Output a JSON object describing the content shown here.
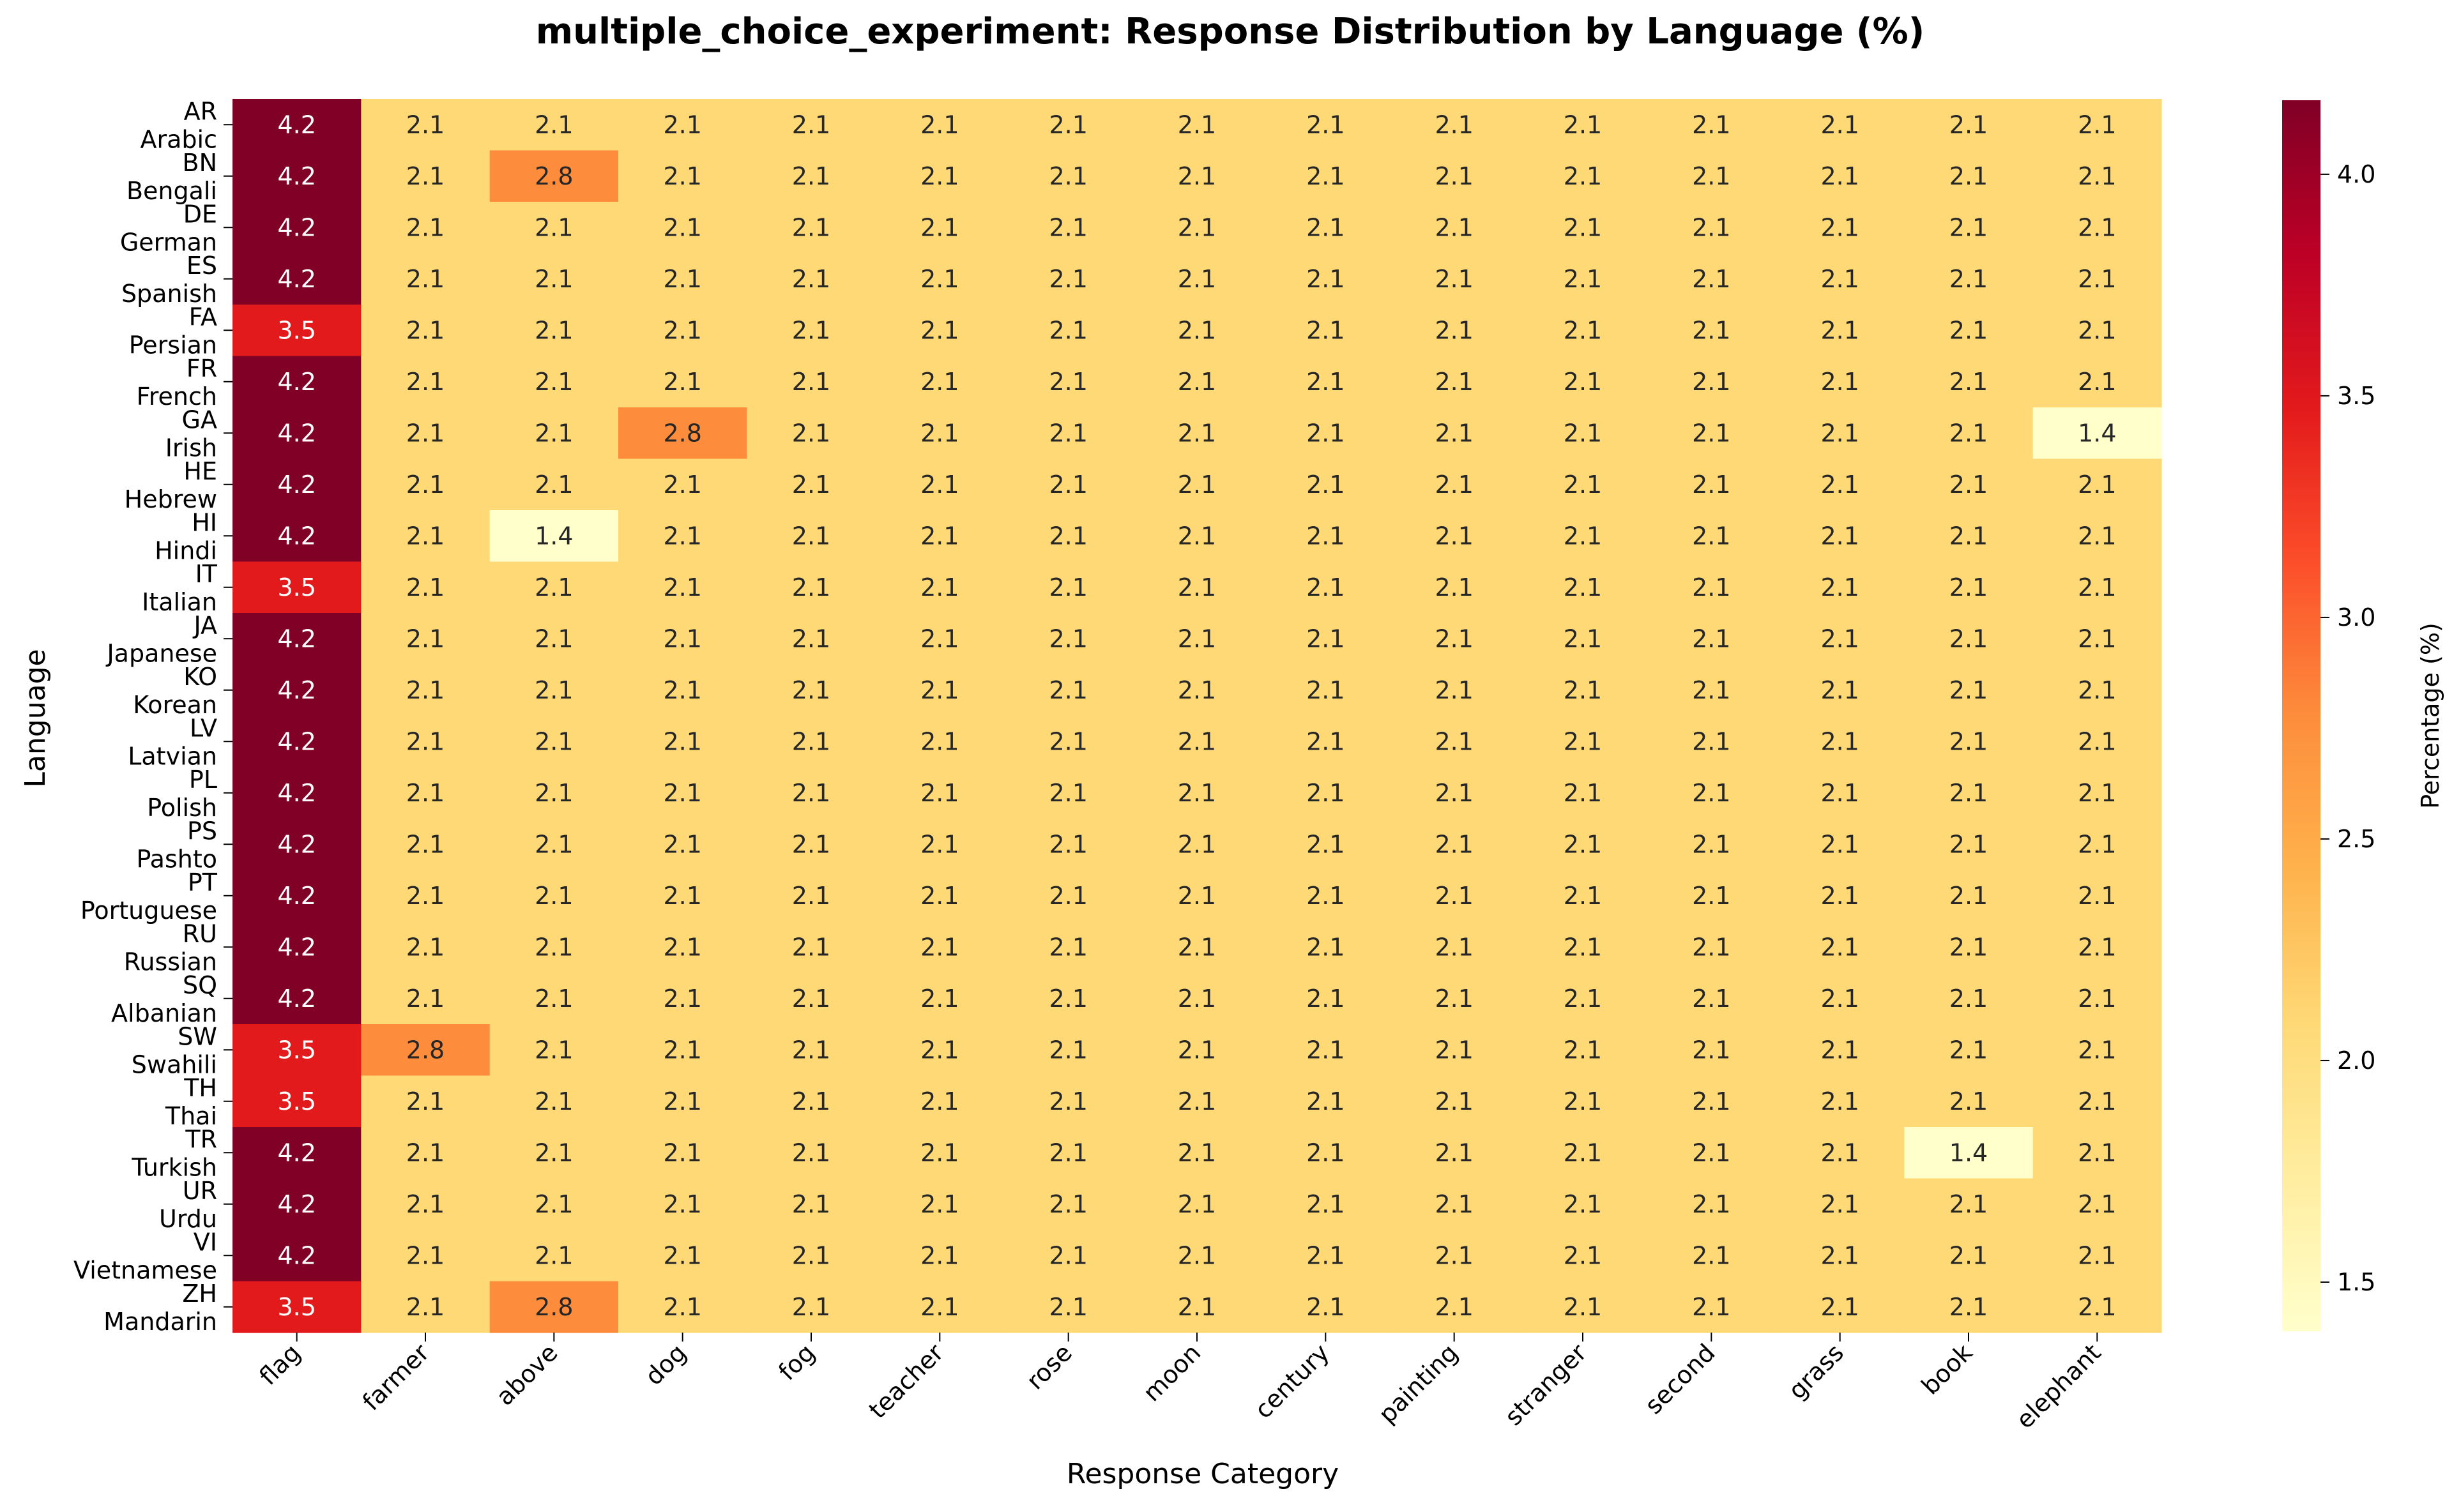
{
  "chart_data": {
    "type": "heatmap",
    "title": "multiple_choice_experiment: Response Distribution by Language (%)",
    "xlabel": "Response Category",
    "ylabel": "Language",
    "colorbar_label": "Percentage (%)",
    "colormap": "YlOrRd",
    "value_range": [
      1.389,
      4.167
    ],
    "colorbar_ticks": [
      "1.5",
      "2.0",
      "2.5",
      "3.0",
      "3.5",
      "4.0"
    ],
    "categories": [
      "flag",
      "farmer",
      "above",
      "dog",
      "fog",
      "teacher",
      "rose",
      "moon",
      "century",
      "painting",
      "stranger",
      "second",
      "grass",
      "book",
      "elephant"
    ],
    "rows": [
      {
        "code": "AR",
        "name": "Arabic"
      },
      {
        "code": "BN",
        "name": "Bengali"
      },
      {
        "code": "DE",
        "name": "German"
      },
      {
        "code": "ES",
        "name": "Spanish"
      },
      {
        "code": "FA",
        "name": "Persian"
      },
      {
        "code": "FR",
        "name": "French"
      },
      {
        "code": "GA",
        "name": "Irish"
      },
      {
        "code": "HE",
        "name": "Hebrew"
      },
      {
        "code": "HI",
        "name": "Hindi"
      },
      {
        "code": "IT",
        "name": "Italian"
      },
      {
        "code": "JA",
        "name": "Japanese"
      },
      {
        "code": "KO",
        "name": "Korean"
      },
      {
        "code": "LV",
        "name": "Latvian"
      },
      {
        "code": "PL",
        "name": "Polish"
      },
      {
        "code": "PS",
        "name": "Pashto"
      },
      {
        "code": "PT",
        "name": "Portuguese"
      },
      {
        "code": "RU",
        "name": "Russian"
      },
      {
        "code": "SQ",
        "name": "Albanian"
      },
      {
        "code": "SW",
        "name": "Swahili"
      },
      {
        "code": "TH",
        "name": "Thai"
      },
      {
        "code": "TR",
        "name": "Turkish"
      },
      {
        "code": "UR",
        "name": "Urdu"
      },
      {
        "code": "VI",
        "name": "Vietnamese"
      },
      {
        "code": "ZH",
        "name": "Mandarin"
      }
    ],
    "values": [
      [
        4.2,
        2.1,
        2.1,
        2.1,
        2.1,
        2.1,
        2.1,
        2.1,
        2.1,
        2.1,
        2.1,
        2.1,
        2.1,
        2.1,
        2.1
      ],
      [
        4.2,
        2.1,
        2.8,
        2.1,
        2.1,
        2.1,
        2.1,
        2.1,
        2.1,
        2.1,
        2.1,
        2.1,
        2.1,
        2.1,
        2.1
      ],
      [
        4.2,
        2.1,
        2.1,
        2.1,
        2.1,
        2.1,
        2.1,
        2.1,
        2.1,
        2.1,
        2.1,
        2.1,
        2.1,
        2.1,
        2.1
      ],
      [
        4.2,
        2.1,
        2.1,
        2.1,
        2.1,
        2.1,
        2.1,
        2.1,
        2.1,
        2.1,
        2.1,
        2.1,
        2.1,
        2.1,
        2.1
      ],
      [
        3.5,
        2.1,
        2.1,
        2.1,
        2.1,
        2.1,
        2.1,
        2.1,
        2.1,
        2.1,
        2.1,
        2.1,
        2.1,
        2.1,
        2.1
      ],
      [
        4.2,
        2.1,
        2.1,
        2.1,
        2.1,
        2.1,
        2.1,
        2.1,
        2.1,
        2.1,
        2.1,
        2.1,
        2.1,
        2.1,
        2.1
      ],
      [
        4.2,
        2.1,
        2.1,
        2.8,
        2.1,
        2.1,
        2.1,
        2.1,
        2.1,
        2.1,
        2.1,
        2.1,
        2.1,
        2.1,
        1.4
      ],
      [
        4.2,
        2.1,
        2.1,
        2.1,
        2.1,
        2.1,
        2.1,
        2.1,
        2.1,
        2.1,
        2.1,
        2.1,
        2.1,
        2.1,
        2.1
      ],
      [
        4.2,
        2.1,
        1.4,
        2.1,
        2.1,
        2.1,
        2.1,
        2.1,
        2.1,
        2.1,
        2.1,
        2.1,
        2.1,
        2.1,
        2.1
      ],
      [
        3.5,
        2.1,
        2.1,
        2.1,
        2.1,
        2.1,
        2.1,
        2.1,
        2.1,
        2.1,
        2.1,
        2.1,
        2.1,
        2.1,
        2.1
      ],
      [
        4.2,
        2.1,
        2.1,
        2.1,
        2.1,
        2.1,
        2.1,
        2.1,
        2.1,
        2.1,
        2.1,
        2.1,
        2.1,
        2.1,
        2.1
      ],
      [
        4.2,
        2.1,
        2.1,
        2.1,
        2.1,
        2.1,
        2.1,
        2.1,
        2.1,
        2.1,
        2.1,
        2.1,
        2.1,
        2.1,
        2.1
      ],
      [
        4.2,
        2.1,
        2.1,
        2.1,
        2.1,
        2.1,
        2.1,
        2.1,
        2.1,
        2.1,
        2.1,
        2.1,
        2.1,
        2.1,
        2.1
      ],
      [
        4.2,
        2.1,
        2.1,
        2.1,
        2.1,
        2.1,
        2.1,
        2.1,
        2.1,
        2.1,
        2.1,
        2.1,
        2.1,
        2.1,
        2.1
      ],
      [
        4.2,
        2.1,
        2.1,
        2.1,
        2.1,
        2.1,
        2.1,
        2.1,
        2.1,
        2.1,
        2.1,
        2.1,
        2.1,
        2.1,
        2.1
      ],
      [
        4.2,
        2.1,
        2.1,
        2.1,
        2.1,
        2.1,
        2.1,
        2.1,
        2.1,
        2.1,
        2.1,
        2.1,
        2.1,
        2.1,
        2.1
      ],
      [
        4.2,
        2.1,
        2.1,
        2.1,
        2.1,
        2.1,
        2.1,
        2.1,
        2.1,
        2.1,
        2.1,
        2.1,
        2.1,
        2.1,
        2.1
      ],
      [
        4.2,
        2.1,
        2.1,
        2.1,
        2.1,
        2.1,
        2.1,
        2.1,
        2.1,
        2.1,
        2.1,
        2.1,
        2.1,
        2.1,
        2.1
      ],
      [
        3.5,
        2.8,
        2.1,
        2.1,
        2.1,
        2.1,
        2.1,
        2.1,
        2.1,
        2.1,
        2.1,
        2.1,
        2.1,
        2.1,
        2.1
      ],
      [
        3.5,
        2.1,
        2.1,
        2.1,
        2.1,
        2.1,
        2.1,
        2.1,
        2.1,
        2.1,
        2.1,
        2.1,
        2.1,
        2.1,
        2.1
      ],
      [
        4.2,
        2.1,
        2.1,
        2.1,
        2.1,
        2.1,
        2.1,
        2.1,
        2.1,
        2.1,
        2.1,
        2.1,
        2.1,
        1.4,
        2.1
      ],
      [
        4.2,
        2.1,
        2.1,
        2.1,
        2.1,
        2.1,
        2.1,
        2.1,
        2.1,
        2.1,
        2.1,
        2.1,
        2.1,
        2.1,
        2.1
      ],
      [
        4.2,
        2.1,
        2.1,
        2.1,
        2.1,
        2.1,
        2.1,
        2.1,
        2.1,
        2.1,
        2.1,
        2.1,
        2.1,
        2.1,
        2.1
      ],
      [
        3.5,
        2.1,
        2.8,
        2.1,
        2.1,
        2.1,
        2.1,
        2.1,
        2.1,
        2.1,
        2.1,
        2.1,
        2.1,
        2.1,
        2.1
      ]
    ],
    "colors": {
      "1.4": "#ffffcc",
      "2.1": "#fed976",
      "2.8": "#fd8d3c",
      "3.5": "#e31a1c",
      "4.2": "#800026"
    },
    "grid": false,
    "colorbar_position": "right"
  }
}
